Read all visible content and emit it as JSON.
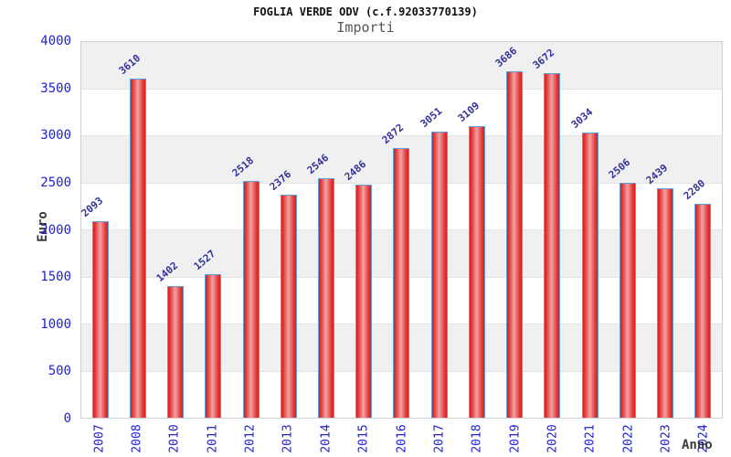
{
  "chart_data": {
    "type": "bar",
    "title": "FOGLIA VERDE ODV (c.f.92033770139)",
    "subtitle": "Importi",
    "xlabel": "Anno",
    "ylabel": "Euro",
    "categories": [
      "2007",
      "2008",
      "2010",
      "2011",
      "2012",
      "2013",
      "2014",
      "2015",
      "2016",
      "2017",
      "2018",
      "2019",
      "2020",
      "2021",
      "2022",
      "2023",
      "2024"
    ],
    "values": [
      2093,
      3610,
      1402,
      1527,
      2518,
      2376,
      2546,
      2486,
      2872,
      3051,
      3109,
      3686,
      3672,
      3034,
      2506,
      2439,
      2280
    ],
    "ylim": [
      0,
      4000
    ],
    "ytick_step": 500,
    "ytick_labels": [
      "0",
      "500",
      "1000",
      "1500",
      "2000",
      "2500",
      "3000",
      "3500",
      "4000"
    ],
    "grid": "alternating-horizontal-bands",
    "legend": "none",
    "colors": {
      "bar_fill_dark": "#dc1f1f",
      "bar_fill_light": "#f2a2a2",
      "bar_border": "#5f9fd8",
      "value_label": "#333399",
      "tick_label": "#2222cc",
      "band_gray": "#f0f0f0",
      "band_white": "#ffffff",
      "axis_title": "#3a3a3a",
      "title": "#111111",
      "subtitle": "#555555"
    }
  }
}
